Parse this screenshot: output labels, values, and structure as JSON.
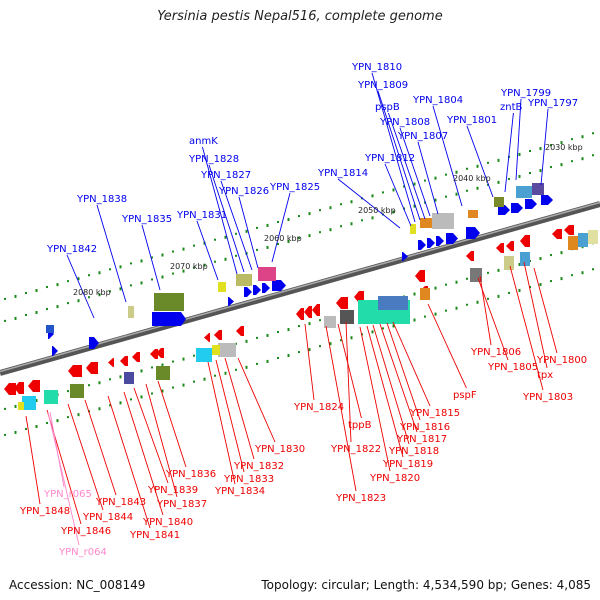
{
  "title": "Yersinia pestis Nepal516, complete genome",
  "footer": {
    "accession": "Accession: NC_008149",
    "summary": "Topology: circular; Length: 4,534,590 bp; Genes: 4,085"
  },
  "colors": {
    "forward_strand": "#0000ee",
    "reverse_strand": "#ee0000",
    "rna": "#ff88cc",
    "backbone": "#777777",
    "tick": "#1a8a1a"
  },
  "kbp_ticks": [
    "2030 kbp",
    "2040 kbp",
    "2050 kbp",
    "2060 kbp",
    "2070 kbp",
    "2080 kbp"
  ],
  "forward_genes": [
    "YPN_1797",
    "YPN_1799",
    "zntB",
    "YPN_1801",
    "YPN_1804",
    "YPN_1807",
    "YPN_1808",
    "pspB",
    "YPN_1809",
    "YPN_1810",
    "YPN_1812",
    "YPN_1814",
    "YPN_1825",
    "YPN_1826",
    "YPN_1827",
    "YPN_1828",
    "anmK",
    "YPN_1831",
    "YPN_1835",
    "YPN_1838",
    "YPN_1842"
  ],
  "reverse_genes": [
    "YPN_1800",
    "tpx",
    "YPN_1803",
    "YPN_1805",
    "YPN_1806",
    "pspF",
    "YPN_1815",
    "YPN_1816",
    "YPN_1817",
    "YPN_1818",
    "YPN_1819",
    "YPN_1820",
    "YPN_1822",
    "tppB",
    "YPN_1823",
    "YPN_1824",
    "YPN_1830",
    "YPN_1832",
    "YPN_1833",
    "YPN_1834",
    "YPN_1836",
    "YPN_1837",
    "YPN_1839",
    "YPN_1840",
    "YPN_1841",
    "YPN_1843",
    "YPN_1844",
    "YPN_1846",
    "YPN_1848"
  ],
  "rna_genes": [
    "YPN_r065",
    "YPN_r064"
  ]
}
